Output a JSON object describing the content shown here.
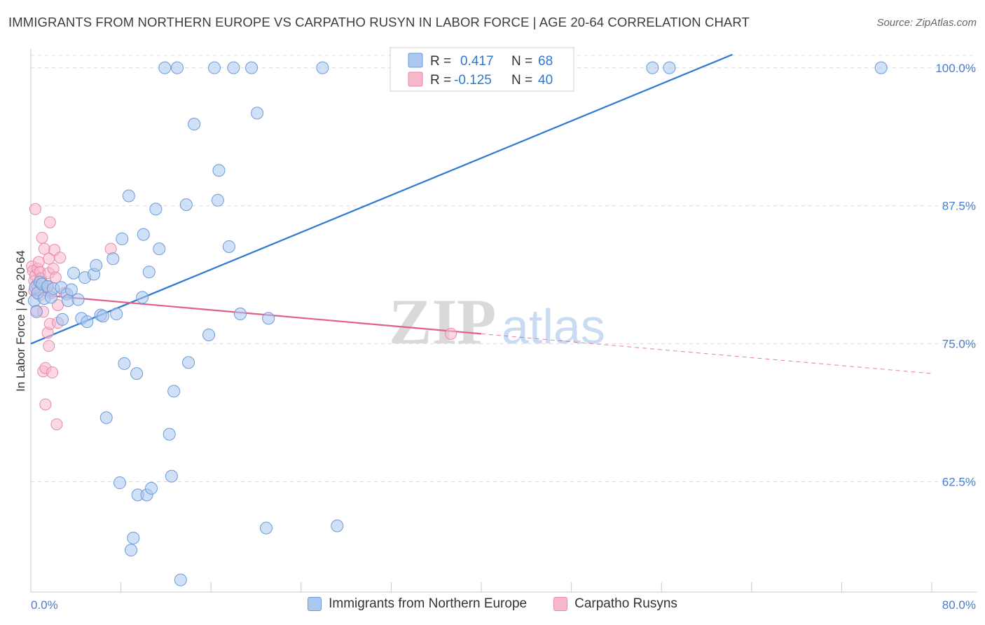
{
  "header": {
    "title": "IMMIGRANTS FROM NORTHERN EUROPE VS CARPATHO RUSYN IN LABOR FORCE | AGE 20-64 CORRELATION CHART",
    "source": "Source: ZipAtlas.com"
  },
  "watermark": {
    "zip": "ZIP",
    "atlas": "atlas"
  },
  "legend_stats": {
    "r_label": "R =",
    "n_label": "N =",
    "series1": {
      "r": "0.417",
      "n": "68"
    },
    "series2": {
      "r": "-0.125",
      "n": "40"
    }
  },
  "bottom_legend": {
    "series1_label": "Immigrants from Northern Europe",
    "series2_label": "Carpatho Rusyns"
  },
  "colors": {
    "series1_fill": "#aac8f0",
    "series1_stroke": "#6b9bd8",
    "series1_line": "#2f78d0",
    "series2_fill": "#f7b8cc",
    "series2_stroke": "#e88aa8",
    "series2_line": "#e0608c",
    "axis_text": "#4a7cc9",
    "grid": "#dcdcdc"
  },
  "chart_data": {
    "type": "scatter",
    "title": "IMMIGRANTS FROM NORTHERN EUROPE VS CARPATHO RUSYN IN LABOR FORCE | AGE 20-64 CORRELATION CHART",
    "xlabel": "",
    "ylabel": "In Labor Force | Age 20-64",
    "xlim": [
      0,
      80
    ],
    "ylim": [
      52.5,
      101.7
    ],
    "x_tick_labels": [
      "0.0%",
      "80.0%"
    ],
    "y_ticks": [
      62.5,
      75.0,
      87.5,
      100.0
    ],
    "y_tick_labels": [
      "62.5%",
      "75.0%",
      "87.5%",
      "100.0%"
    ],
    "grid": "horizontal dashed",
    "legend_position": "top-center",
    "series": [
      {
        "name": "Immigrants from Northern Europe",
        "r": 0.417,
        "n": 68,
        "trendline": {
          "x": [
            0,
            62.3
          ],
          "y": [
            75.0,
            101.2
          ]
        },
        "points": [
          [
            0.3,
            78.9
          ],
          [
            0.4,
            80.1
          ],
          [
            0.6,
            79.6
          ],
          [
            0.8,
            80.6
          ],
          [
            1.0,
            80.4
          ],
          [
            1.2,
            79.1
          ],
          [
            1.5,
            80.2
          ],
          [
            1.8,
            79.2
          ],
          [
            2.0,
            80.0
          ],
          [
            2.7,
            80.1
          ],
          [
            2.8,
            77.2
          ],
          [
            3.2,
            79.5
          ],
          [
            3.3,
            78.9
          ],
          [
            3.6,
            79.9
          ],
          [
            3.8,
            81.4
          ],
          [
            4.2,
            79.0
          ],
          [
            4.5,
            77.3
          ],
          [
            4.8,
            81.0
          ],
          [
            5.0,
            77.0
          ],
          [
            5.6,
            81.3
          ],
          [
            5.8,
            82.1
          ],
          [
            6.2,
            77.6
          ],
          [
            6.4,
            77.5
          ],
          [
            6.7,
            68.3
          ],
          [
            7.3,
            82.7
          ],
          [
            7.6,
            77.7
          ],
          [
            7.9,
            62.4
          ],
          [
            8.1,
            84.5
          ],
          [
            8.3,
            73.2
          ],
          [
            8.7,
            88.4
          ],
          [
            8.9,
            56.3
          ],
          [
            9.1,
            57.4
          ],
          [
            9.4,
            72.3
          ],
          [
            9.5,
            61.3
          ],
          [
            9.9,
            79.2
          ],
          [
            10.0,
            84.9
          ],
          [
            10.3,
            61.3
          ],
          [
            10.5,
            81.5
          ],
          [
            10.7,
            61.9
          ],
          [
            11.1,
            87.2
          ],
          [
            11.4,
            83.6
          ],
          [
            11.9,
            100.0
          ],
          [
            12.3,
            66.8
          ],
          [
            12.5,
            63.0
          ],
          [
            12.7,
            70.7
          ],
          [
            13.0,
            100.0
          ],
          [
            13.3,
            53.6
          ],
          [
            13.8,
            87.6
          ],
          [
            14.0,
            73.3
          ],
          [
            14.5,
            94.9
          ],
          [
            15.8,
            75.8
          ],
          [
            16.3,
            100.0
          ],
          [
            16.6,
            88.0
          ],
          [
            16.7,
            90.7
          ],
          [
            17.6,
            83.8
          ],
          [
            18.0,
            100.0
          ],
          [
            18.6,
            77.7
          ],
          [
            19.6,
            100.0
          ],
          [
            20.1,
            95.9
          ],
          [
            20.9,
            58.3
          ],
          [
            21.1,
            77.3
          ],
          [
            25.9,
            100.0
          ],
          [
            27.2,
            58.5
          ],
          [
            33.0,
            100.0
          ],
          [
            55.2,
            100.0
          ],
          [
            56.7,
            100.0
          ],
          [
            75.5,
            100.0
          ],
          [
            0.5,
            77.9
          ]
        ]
      },
      {
        "name": "Carpatho Rusyns",
        "r": -0.125,
        "n": 40,
        "trendline": {
          "x": [
            0,
            40.0
          ],
          "y": [
            79.5,
            75.9
          ],
          "dashed_extension": {
            "x": [
              40.0,
              80.0
            ],
            "y": [
              75.9,
              72.3
            ]
          }
        },
        "points": [
          [
            0.1,
            82.0
          ],
          [
            0.2,
            81.6
          ],
          [
            0.3,
            80.7
          ],
          [
            0.3,
            79.8
          ],
          [
            0.4,
            81.2
          ],
          [
            0.5,
            80.3
          ],
          [
            0.5,
            78.0
          ],
          [
            0.6,
            81.8
          ],
          [
            0.6,
            80.1
          ],
          [
            0.7,
            82.4
          ],
          [
            0.8,
            81.5
          ],
          [
            0.8,
            79.4
          ],
          [
            0.9,
            80.9
          ],
          [
            1.0,
            80.5
          ],
          [
            1.0,
            84.6
          ],
          [
            1.1,
            77.9
          ],
          [
            1.1,
            72.5
          ],
          [
            1.2,
            83.6
          ],
          [
            1.3,
            72.8
          ],
          [
            1.3,
            69.5
          ],
          [
            1.4,
            80.2
          ],
          [
            1.5,
            76.0
          ],
          [
            1.6,
            81.4
          ],
          [
            1.6,
            82.7
          ],
          [
            1.6,
            74.8
          ],
          [
            1.7,
            86.0
          ],
          [
            1.7,
            76.8
          ],
          [
            1.8,
            79.6
          ],
          [
            1.9,
            72.4
          ],
          [
            2.0,
            81.8
          ],
          [
            2.1,
            83.5
          ],
          [
            2.2,
            81.0
          ],
          [
            2.3,
            67.7
          ],
          [
            2.4,
            76.9
          ],
          [
            2.4,
            78.5
          ],
          [
            2.6,
            82.8
          ],
          [
            3.0,
            79.6
          ],
          [
            0.4,
            87.2
          ],
          [
            7.1,
            83.6
          ],
          [
            37.3,
            75.9
          ]
        ]
      }
    ]
  }
}
